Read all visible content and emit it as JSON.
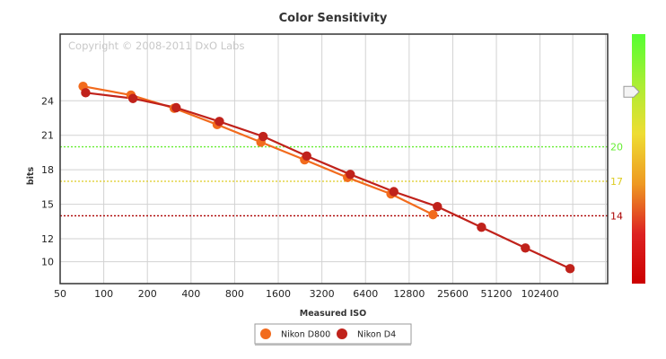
{
  "chart_data": {
    "type": "line",
    "title": "Color Sensitivity",
    "xlabel": "Measured ISO",
    "ylabel": "bits",
    "x_scale": "log2",
    "x_ticks": [
      50,
      100,
      200,
      400,
      800,
      1600,
      3200,
      6400,
      12800,
      25600,
      51200,
      102400
    ],
    "y_ticks": [
      10,
      12,
      15,
      18,
      21,
      24
    ],
    "ylim": [
      8.1,
      29.8
    ],
    "grid": true,
    "legend": "bottom-center",
    "watermark": "Copyright © 2008-2011 DxO Labs",
    "series": [
      {
        "name": "Nikon D800",
        "color": "#f26b1d",
        "x": [
          72,
          154,
          306,
          606,
          1214,
          2430,
          4810,
          9590,
          18700
        ],
        "y": [
          25.26,
          24.5,
          23.35,
          21.93,
          20.4,
          18.87,
          17.33,
          15.9,
          14.1
        ]
      },
      {
        "name": "Nikon D4",
        "color": "#c0221b",
        "x": [
          75,
          159,
          316,
          628,
          1258,
          2514,
          5024,
          10030,
          20050,
          40400,
          81100,
          165000
        ],
        "y": [
          24.7,
          24.2,
          23.4,
          22.2,
          20.9,
          19.2,
          17.6,
          16.1,
          14.8,
          13.0,
          11.2,
          9.4
        ]
      }
    ],
    "reference_lines": [
      {
        "label": "20",
        "value": 20.0,
        "color": "#66ee33"
      },
      {
        "label": "17",
        "value": 17.0,
        "color": "#ddcc22"
      },
      {
        "label": "14",
        "value": 14.0,
        "color": "#aa0000"
      }
    ],
    "color_scale": {
      "stops": [
        "#55ff33",
        "#aaee33",
        "#eedd33",
        "#ee9922",
        "#dd2222",
        "#cc0000"
      ],
      "marker_value": 24.0
    }
  }
}
